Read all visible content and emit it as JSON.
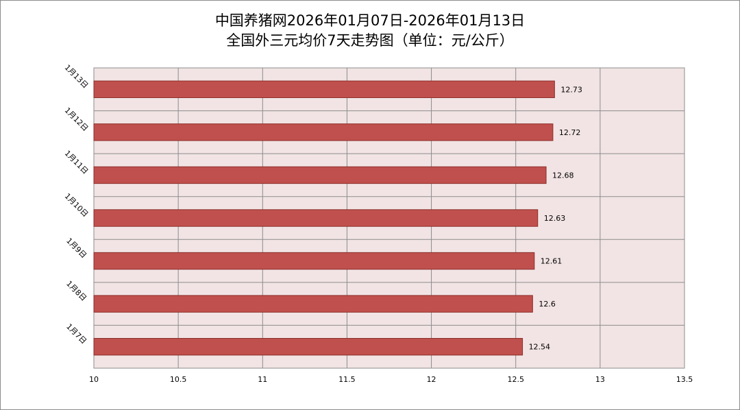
{
  "chart_data": {
    "type": "bar",
    "orientation": "horizontal",
    "title": "中国养猪网2026年01月07日-2026年01月13日",
    "subtitle": "全国外三元均价7天走势图（单位：元/公斤）",
    "categories": [
      "1月7日",
      "1月8日",
      "1月9日",
      "1月10日",
      "1月11日",
      "1月12日",
      "1月13日"
    ],
    "values": [
      12.54,
      12.6,
      12.61,
      12.63,
      12.68,
      12.72,
      12.73
    ],
    "value_labels": [
      "12.54",
      "12.6",
      "12.61",
      "12.63",
      "12.68",
      "12.72",
      "12.73"
    ],
    "xlim": [
      10,
      13.5
    ],
    "x_ticks": [
      10,
      10.5,
      11,
      11.5,
      12,
      12.5,
      13,
      13.5
    ],
    "x_tick_labels": [
      "10",
      "10.5",
      "11",
      "11.5",
      "12",
      "12.5",
      "13",
      "13.5"
    ],
    "grid": true,
    "legend": "none",
    "colors": {
      "bar_fill": "#c0504d",
      "bar_stroke": "#8b2e2b",
      "plot_background": "#f2e4e4",
      "grid": "#8c8c8c"
    }
  }
}
